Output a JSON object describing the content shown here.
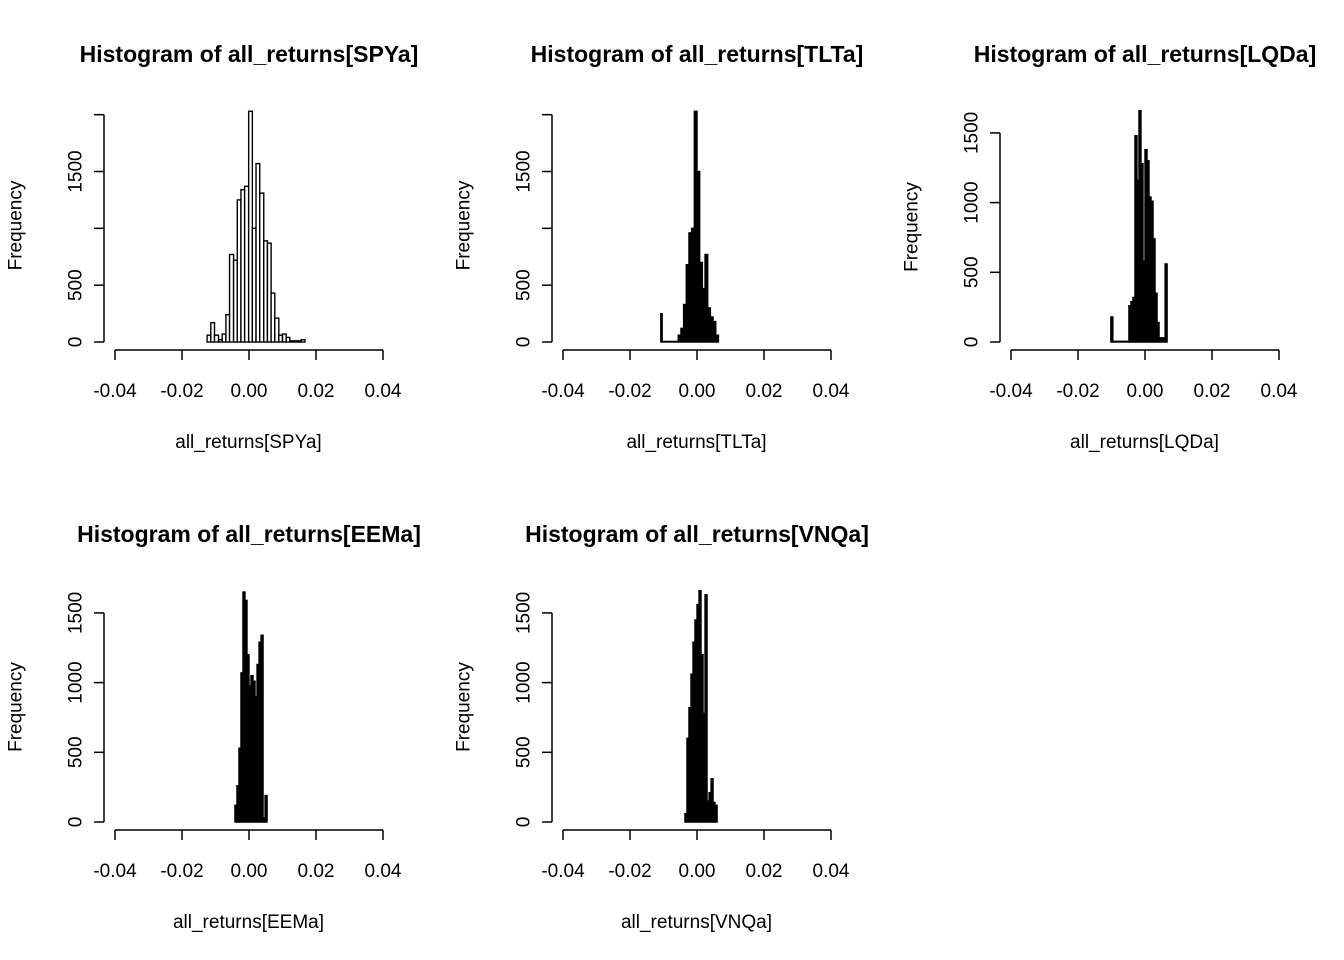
{
  "chart_data": [
    {
      "type": "histogram",
      "title": "Histogram of all_returns[SPYa]",
      "xlabel": "all_returns[SPYa]",
      "ylabel": "Frequency",
      "xlim": [
        -0.04,
        0.04
      ],
      "xticks": [
        "-0.04",
        "-0.02",
        "0.00",
        "0.02",
        "0.04"
      ],
      "yticks": [
        0,
        500,
        1000,
        1500,
        2000
      ],
      "ytick_labels": [
        "0",
        "500",
        "",
        "1500",
        ""
      ],
      "ylim": [
        0,
        2050
      ],
      "fill": "#ffffff",
      "bins": [
        {
          "x0": -0.0125,
          "x1": -0.0114,
          "count": 60
        },
        {
          "x0": -0.0114,
          "x1": -0.0103,
          "count": 170
        },
        {
          "x0": -0.0103,
          "x1": -0.0091,
          "count": 60
        },
        {
          "x0": -0.0091,
          "x1": -0.008,
          "count": 20
        },
        {
          "x0": -0.008,
          "x1": -0.0069,
          "count": 70
        },
        {
          "x0": -0.0069,
          "x1": -0.0058,
          "count": 240
        },
        {
          "x0": -0.0058,
          "x1": -0.0046,
          "count": 770
        },
        {
          "x0": -0.0046,
          "x1": -0.0035,
          "count": 720
        },
        {
          "x0": -0.0035,
          "x1": -0.0024,
          "count": 1250
        },
        {
          "x0": -0.0024,
          "x1": -0.0013,
          "count": 1340
        },
        {
          "x0": -0.0013,
          "x1": -0.0001,
          "count": 1370
        },
        {
          "x0": -0.0001,
          "x1": 0.001,
          "count": 2030
        },
        {
          "x0": 0.001,
          "x1": 0.0021,
          "count": 1000
        },
        {
          "x0": 0.0021,
          "x1": 0.0032,
          "count": 1570
        },
        {
          "x0": 0.0032,
          "x1": 0.0044,
          "count": 1310
        },
        {
          "x0": 0.0044,
          "x1": 0.0055,
          "count": 890
        },
        {
          "x0": 0.0055,
          "x1": 0.0066,
          "count": 870
        },
        {
          "x0": 0.0066,
          "x1": 0.0077,
          "count": 430
        },
        {
          "x0": 0.0077,
          "x1": 0.0089,
          "count": 210
        },
        {
          "x0": 0.0089,
          "x1": 0.01,
          "count": 60
        },
        {
          "x0": 0.01,
          "x1": 0.0111,
          "count": 70
        },
        {
          "x0": 0.0111,
          "x1": 0.0122,
          "count": 40
        },
        {
          "x0": 0.0122,
          "x1": 0.0134,
          "count": 10
        },
        {
          "x0": 0.0134,
          "x1": 0.0145,
          "count": 10
        },
        {
          "x0": 0.0145,
          "x1": 0.0156,
          "count": 10
        },
        {
          "x0": 0.0156,
          "x1": 0.0167,
          "count": 20
        }
      ]
    },
    {
      "type": "histogram",
      "title": "Histogram of all_returns[TLTa]",
      "xlabel": "all_returns[TLTa]",
      "ylabel": "Frequency",
      "xlim": [
        -0.04,
        0.04
      ],
      "xticks": [
        "-0.04",
        "-0.02",
        "0.00",
        "0.02",
        "0.04"
      ],
      "yticks": [
        0,
        500,
        1000,
        1500,
        2000
      ],
      "ytick_labels": [
        "0",
        "500",
        "",
        "1500",
        ""
      ],
      "ylim": [
        0,
        2050
      ],
      "fill": "#000000",
      "bins": [
        {
          "x0": -0.0108,
          "x1": -0.0104,
          "count": 250
        },
        {
          "x0": -0.0104,
          "x1": -0.0056,
          "count": 5
        },
        {
          "x0": -0.0056,
          "x1": -0.0048,
          "count": 60
        },
        {
          "x0": -0.0048,
          "x1": -0.004,
          "count": 120
        },
        {
          "x0": -0.004,
          "x1": -0.0032,
          "count": 330
        },
        {
          "x0": -0.0032,
          "x1": -0.0024,
          "count": 680
        },
        {
          "x0": -0.0024,
          "x1": -0.0016,
          "count": 960
        },
        {
          "x0": -0.0016,
          "x1": -0.0008,
          "count": 1000
        },
        {
          "x0": -0.0008,
          "x1": 0.0,
          "count": 2030
        },
        {
          "x0": 0.0,
          "x1": 0.0008,
          "count": 1500
        },
        {
          "x0": 0.0008,
          "x1": 0.0016,
          "count": 700
        },
        {
          "x0": 0.0016,
          "x1": 0.0024,
          "count": 470
        },
        {
          "x0": 0.0024,
          "x1": 0.0032,
          "count": 770
        },
        {
          "x0": 0.0032,
          "x1": 0.004,
          "count": 300
        },
        {
          "x0": 0.004,
          "x1": 0.0048,
          "count": 220
        },
        {
          "x0": 0.0048,
          "x1": 0.0056,
          "count": 180
        },
        {
          "x0": 0.0056,
          "x1": 0.0064,
          "count": 60
        }
      ]
    },
    {
      "type": "histogram",
      "title": "Histogram of all_returns[LQDa]",
      "xlabel": "all_returns[LQDa]",
      "ylabel": "Frequency",
      "xlim": [
        -0.04,
        0.04
      ],
      "xticks": [
        "-0.04",
        "-0.02",
        "0.00",
        "0.02",
        "0.04"
      ],
      "yticks": [
        0,
        500,
        1000,
        1500
      ],
      "ytick_labels": [
        "0",
        "500",
        "1000",
        "1500"
      ],
      "ylim": [
        0,
        1650
      ],
      "fill": "#000000",
      "bins": [
        {
          "x0": -0.0102,
          "x1": -0.0096,
          "count": 180
        },
        {
          "x0": -0.0096,
          "x1": -0.0048,
          "count": 5
        },
        {
          "x0": -0.0048,
          "x1": -0.0042,
          "count": 260
        },
        {
          "x0": -0.0042,
          "x1": -0.0036,
          "count": 290
        },
        {
          "x0": -0.0036,
          "x1": -0.003,
          "count": 320
        },
        {
          "x0": -0.003,
          "x1": -0.0024,
          "count": 1480
        },
        {
          "x0": -0.0024,
          "x1": -0.0018,
          "count": 1160
        },
        {
          "x0": -0.0018,
          "x1": -0.0012,
          "count": 1660
        },
        {
          "x0": -0.0012,
          "x1": -0.0006,
          "count": 1280
        },
        {
          "x0": -0.0006,
          "x1": 0.0,
          "count": 580
        },
        {
          "x0": 0.0,
          "x1": 0.0006,
          "count": 1380
        },
        {
          "x0": 0.0006,
          "x1": 0.0012,
          "count": 1300
        },
        {
          "x0": 0.0012,
          "x1": 0.0018,
          "count": 1040
        },
        {
          "x0": 0.0018,
          "x1": 0.0024,
          "count": 1010
        },
        {
          "x0": 0.0024,
          "x1": 0.003,
          "count": 740
        },
        {
          "x0": 0.003,
          "x1": 0.0036,
          "count": 350
        },
        {
          "x0": 0.0036,
          "x1": 0.0042,
          "count": 140
        },
        {
          "x0": 0.0042,
          "x1": 0.006,
          "count": 30
        },
        {
          "x0": 0.006,
          "x1": 0.0066,
          "count": 560
        }
      ]
    },
    {
      "type": "histogram",
      "title": "Histogram of all_returns[EEMa]",
      "xlabel": "all_returns[EEMa]",
      "ylabel": "Frequency",
      "xlim": [
        -0.04,
        0.04
      ],
      "xticks": [
        "-0.04",
        "-0.02",
        "0.00",
        "0.02",
        "0.04"
      ],
      "yticks": [
        0,
        500,
        1000,
        1500
      ],
      "ytick_labels": [
        "0",
        "500",
        "1000",
        "1500"
      ],
      "ylim": [
        0,
        1650
      ],
      "fill": "#000000",
      "bins": [
        {
          "x0": -0.0042,
          "x1": -0.0036,
          "count": 120
        },
        {
          "x0": -0.0036,
          "x1": -0.003,
          "count": 260
        },
        {
          "x0": -0.003,
          "x1": -0.0024,
          "count": 530
        },
        {
          "x0": -0.0024,
          "x1": -0.0018,
          "count": 1070
        },
        {
          "x0": -0.0018,
          "x1": -0.0012,
          "count": 1650
        },
        {
          "x0": -0.0012,
          "x1": -0.0006,
          "count": 1590
        },
        {
          "x0": -0.0006,
          "x1": 0.0,
          "count": 1200
        },
        {
          "x0": 0.0,
          "x1": 0.0006,
          "count": 980
        },
        {
          "x0": 0.0006,
          "x1": 0.0012,
          "count": 1050
        },
        {
          "x0": 0.0012,
          "x1": 0.0018,
          "count": 1010
        },
        {
          "x0": 0.0018,
          "x1": 0.0024,
          "count": 900
        },
        {
          "x0": 0.0024,
          "x1": 0.003,
          "count": 1130
        },
        {
          "x0": 0.003,
          "x1": 0.0036,
          "count": 1290
        },
        {
          "x0": 0.0036,
          "x1": 0.0042,
          "count": 1340
        },
        {
          "x0": 0.0042,
          "x1": 0.0048,
          "count": 30
        },
        {
          "x0": 0.0048,
          "x1": 0.0054,
          "count": 190
        }
      ]
    },
    {
      "type": "histogram",
      "title": "Histogram of all_returns[VNQa]",
      "xlabel": "all_returns[VNQa]",
      "ylabel": "Frequency",
      "xlim": [
        -0.04,
        0.04
      ],
      "xticks": [
        "-0.04",
        "-0.02",
        "0.00",
        "0.02",
        "0.04"
      ],
      "yticks": [
        0,
        500,
        1000,
        1500
      ],
      "ytick_labels": [
        "0",
        "500",
        "1000",
        "1500"
      ],
      "ylim": [
        0,
        1650
      ],
      "fill": "#000000",
      "bins": [
        {
          "x0": -0.0036,
          "x1": -0.003,
          "count": 60
        },
        {
          "x0": -0.003,
          "x1": -0.0024,
          "count": 600
        },
        {
          "x0": -0.0024,
          "x1": -0.0018,
          "count": 820
        },
        {
          "x0": -0.0018,
          "x1": -0.0012,
          "count": 1060
        },
        {
          "x0": -0.0012,
          "x1": -0.0006,
          "count": 1290
        },
        {
          "x0": -0.0006,
          "x1": 0.0,
          "count": 1450
        },
        {
          "x0": 0.0,
          "x1": 0.0006,
          "count": 1560
        },
        {
          "x0": 0.0006,
          "x1": 0.0012,
          "count": 1660
        },
        {
          "x0": 0.0012,
          "x1": 0.0018,
          "count": 1200
        },
        {
          "x0": 0.0018,
          "x1": 0.0024,
          "count": 780
        },
        {
          "x0": 0.0024,
          "x1": 0.003,
          "count": 1630
        },
        {
          "x0": 0.003,
          "x1": 0.0036,
          "count": 150
        },
        {
          "x0": 0.0036,
          "x1": 0.0042,
          "count": 210
        },
        {
          "x0": 0.0042,
          "x1": 0.0048,
          "count": 310
        },
        {
          "x0": 0.0048,
          "x1": 0.0054,
          "count": 140
        },
        {
          "x0": 0.0054,
          "x1": 0.006,
          "count": 120
        }
      ]
    }
  ]
}
